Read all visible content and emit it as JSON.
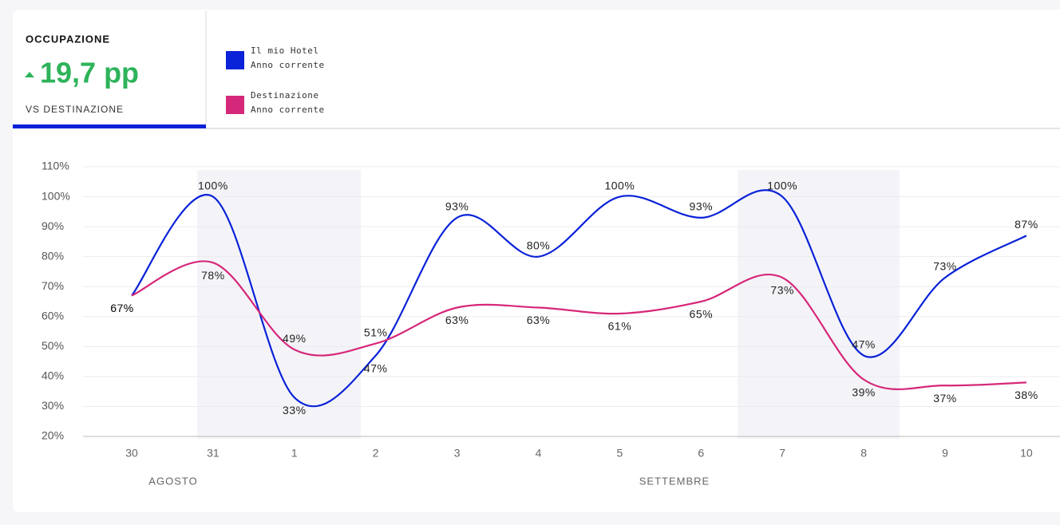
{
  "header": {
    "title": "OCCUPAZIONE",
    "value": "19,7 pp",
    "comparison": "VS DESTINAZIONE"
  },
  "chart_data": {
    "type": "line",
    "categories": [
      "30",
      "31",
      "1",
      "2",
      "3",
      "4",
      "5",
      "6",
      "7",
      "8",
      "9",
      "10"
    ],
    "x_groups": [
      "AGOSTO",
      "SETTEMBRE"
    ],
    "series": [
      {
        "name": "Il mio Hotel",
        "period": "Anno corrente",
        "color": "#0a22d8",
        "values": [
          67,
          100,
          33,
          47,
          93,
          80,
          100,
          93,
          100,
          47,
          73,
          87
        ],
        "value_labels": [
          "67%",
          "100%",
          "33%",
          "47%",
          "93%",
          "80%",
          "100%",
          "93%",
          "100%",
          "47%",
          "73%",
          "87%"
        ]
      },
      {
        "name": "Destinazione",
        "period": "Anno corrente",
        "color": "#d6287a",
        "values": [
          67,
          78,
          49,
          51,
          63,
          63,
          61,
          65,
          73,
          39,
          37,
          38
        ],
        "value_labels": [
          "67%",
          "78%",
          "49%",
          "51%",
          "63%",
          "63%",
          "61%",
          "65%",
          "73%",
          "39%",
          "37%",
          "38%"
        ]
      }
    ],
    "ylim": [
      20,
      110
    ],
    "yticks": [
      {
        "value": 20,
        "label": "20%"
      },
      {
        "value": 30,
        "label": "30%"
      },
      {
        "value": 40,
        "label": "40%"
      },
      {
        "value": 50,
        "label": "50%"
      },
      {
        "value": 60,
        "label": "60%"
      },
      {
        "value": 70,
        "label": "70%"
      },
      {
        "value": 80,
        "label": "80%"
      },
      {
        "value": 90,
        "label": "90%"
      },
      {
        "value": 100,
        "label": "100%"
      },
      {
        "value": 110,
        "label": "110%"
      }
    ],
    "grid": true
  }
}
